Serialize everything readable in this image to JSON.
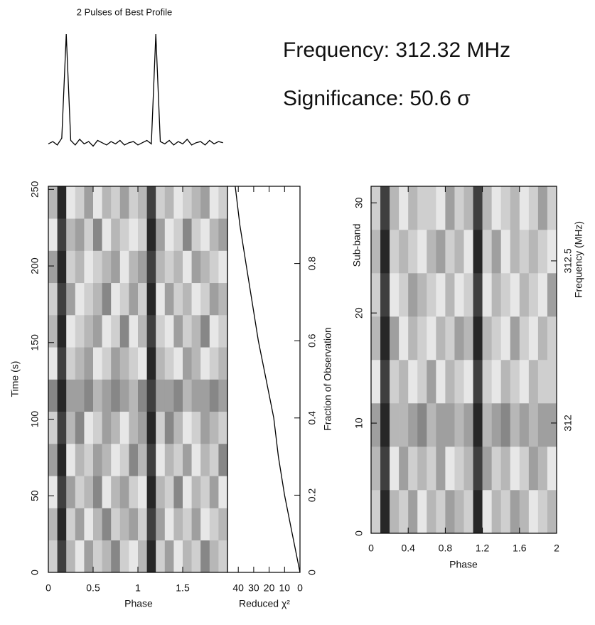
{
  "chart_data": [
    {
      "type": "line",
      "title": "2 Pulses of Best Profile",
      "color": "#000000",
      "x": [
        0,
        0.05,
        0.1,
        0.15,
        0.2,
        0.25,
        0.3,
        0.35,
        0.4,
        0.45,
        0.5,
        0.55,
        0.6,
        0.65,
        0.7,
        0.75,
        0.8,
        0.85,
        0.9,
        0.95,
        1,
        1.05,
        1.1,
        1.15,
        1.2,
        1.25,
        1.3,
        1.35,
        1.4,
        1.45,
        1.5,
        1.55,
        1.6,
        1.65,
        1.7,
        1.75,
        1.8,
        1.85,
        1.9,
        1.95
      ],
      "values": [
        0.03,
        0.05,
        0.02,
        0.08,
        1.0,
        0.06,
        0.02,
        0.07,
        0.03,
        0.05,
        0.01,
        0.06,
        0.04,
        0.02,
        0.05,
        0.03,
        0.06,
        0.02,
        0.04,
        0.05,
        0.02,
        0.04,
        0.06,
        0.03,
        1.0,
        0.05,
        0.03,
        0.06,
        0.02,
        0.05,
        0.03,
        0.07,
        0.02,
        0.04,
        0.05,
        0.02,
        0.06,
        0.03,
        0.05,
        0.04
      ],
      "xlim": [
        0,
        2
      ],
      "ylim": [
        -0.05,
        1.05
      ]
    },
    {
      "type": "heatmap",
      "xlabel": "Phase",
      "ylabel": "Time (s)",
      "xlim": [
        0,
        2
      ],
      "ylim": [
        0,
        252
      ],
      "xticks": [
        0,
        0.5,
        1,
        1.5
      ],
      "yticks": [
        0,
        50,
        100,
        150,
        200,
        250
      ],
      "zlim": [
        0,
        9
      ],
      "rows": [
        [
          2,
          8,
          3,
          1,
          4,
          2,
          3,
          5,
          2,
          1,
          3,
          9,
          2,
          4,
          1,
          3,
          2,
          5,
          3,
          2
        ],
        [
          3,
          9,
          2,
          4,
          1,
          3,
          5,
          2,
          3,
          4,
          2,
          8,
          4,
          1,
          3,
          2,
          4,
          1,
          2,
          3
        ],
        [
          1,
          8,
          4,
          2,
          3,
          5,
          1,
          3,
          4,
          2,
          1,
          9,
          3,
          2,
          5,
          1,
          3,
          2,
          4,
          1
        ],
        [
          4,
          9,
          1,
          3,
          2,
          4,
          3,
          1,
          2,
          5,
          3,
          8,
          1,
          3,
          2,
          4,
          1,
          3,
          2,
          5
        ],
        [
          2,
          8,
          3,
          5,
          1,
          2,
          4,
          3,
          1,
          3,
          4,
          9,
          2,
          5,
          3,
          1,
          2,
          4,
          3,
          2
        ],
        [
          5,
          9,
          4,
          4,
          5,
          3,
          4,
          5,
          4,
          3,
          5,
          8,
          4,
          4,
          5,
          3,
          4,
          4,
          5,
          4
        ],
        [
          1,
          8,
          2,
          3,
          4,
          1,
          2,
          4,
          3,
          2,
          1,
          9,
          3,
          2,
          1,
          4,
          3,
          1,
          2,
          3
        ],
        [
          3,
          9,
          1,
          2,
          3,
          4,
          1,
          2,
          5,
          1,
          3,
          8,
          2,
          1,
          4,
          2,
          3,
          5,
          1,
          2
        ],
        [
          2,
          8,
          4,
          1,
          2,
          3,
          5,
          1,
          2,
          4,
          2,
          9,
          1,
          4,
          2,
          3,
          1,
          2,
          4,
          3
        ],
        [
          4,
          9,
          2,
          3,
          1,
          2,
          3,
          4,
          1,
          3,
          4,
          8,
          3,
          2,
          3,
          1,
          4,
          3,
          2,
          1
        ],
        [
          1,
          8,
          3,
          4,
          2,
          5,
          1,
          3,
          2,
          1,
          2,
          9,
          4,
          1,
          2,
          5,
          2,
          1,
          3,
          4
        ],
        [
          3,
          9,
          1,
          2,
          4,
          1,
          3,
          2,
          4,
          2,
          3,
          8,
          2,
          3,
          1,
          2,
          3,
          4,
          1,
          2
        ]
      ]
    },
    {
      "type": "line",
      "xlabel": "Reduced χ²",
      "ylabel": "Fraction of Observation",
      "color": "#000000",
      "x": [
        0,
        5,
        10,
        14,
        17,
        22,
        27,
        31,
        35,
        39,
        42
      ],
      "values": [
        0,
        0.1,
        0.2,
        0.3,
        0.4,
        0.5,
        0.6,
        0.7,
        0.8,
        0.9,
        1
      ],
      "xlim": [
        47,
        0
      ],
      "ylim": [
        0,
        1
      ],
      "xticks": [
        40,
        30,
        20,
        10,
        0
      ],
      "yticks": [
        0,
        0.2,
        0.4,
        0.6,
        0.8
      ]
    },
    {
      "type": "heatmap",
      "xlabel": "Phase",
      "ylabel": "Sub-band",
      "y2label": "Frequency (MHz)",
      "xlim": [
        0,
        2
      ],
      "ylim": [
        0,
        31.5
      ],
      "xticks": [
        0,
        0.4,
        0.8,
        1.2,
        1.6,
        2
      ],
      "yticks": [
        0,
        10,
        20,
        30
      ],
      "y2lim": [
        311.66,
        312.73
      ],
      "y2ticks": [
        312,
        312.5
      ],
      "zlim": [
        0,
        9
      ],
      "rows": [
        [
          2,
          9,
          3,
          2,
          4,
          1,
          3,
          2,
          4,
          3,
          2,
          9,
          1,
          3,
          2,
          4,
          3,
          1,
          2,
          3
        ],
        [
          3,
          8,
          1,
          4,
          2,
          3,
          2,
          4,
          1,
          2,
          3,
          8,
          4,
          2,
          3,
          1,
          2,
          4,
          3,
          1
        ],
        [
          4,
          9,
          3,
          3,
          4,
          5,
          3,
          4,
          4,
          3,
          4,
          9,
          3,
          4,
          5,
          3,
          4,
          3,
          4,
          4
        ],
        [
          1,
          8,
          2,
          3,
          1,
          2,
          4,
          1,
          3,
          2,
          1,
          8,
          2,
          1,
          3,
          2,
          1,
          3,
          2,
          2
        ],
        [
          3,
          9,
          4,
          1,
          3,
          2,
          1,
          3,
          2,
          4,
          3,
          9,
          3,
          2,
          1,
          4,
          2,
          1,
          3,
          2
        ],
        [
          2,
          8,
          1,
          2,
          4,
          3,
          2,
          1,
          3,
          1,
          2,
          8,
          1,
          3,
          2,
          1,
          3,
          2,
          1,
          4
        ],
        [
          3,
          9,
          2,
          3,
          2,
          1,
          3,
          4,
          2,
          3,
          1,
          9,
          2,
          4,
          1,
          3,
          2,
          3,
          2,
          1
        ],
        [
          2,
          8,
          3,
          1,
          3,
          2,
          2,
          1,
          4,
          2,
          3,
          8,
          3,
          1,
          2,
          3,
          1,
          2,
          4,
          2
        ]
      ]
    }
  ],
  "annotations": [
    {
      "text": "Frequency: 312.32 MHz",
      "color": "#b03232"
    },
    {
      "text": "Significance: 50.6 σ",
      "color": "#3434b0"
    }
  ]
}
